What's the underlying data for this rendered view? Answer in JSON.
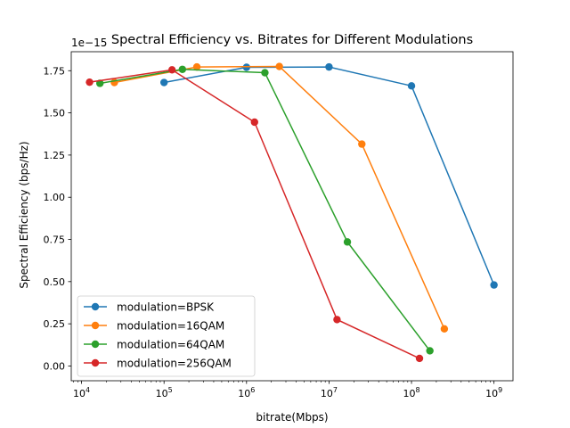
{
  "chart_data": {
    "type": "line",
    "title": "Spectral Efficiency vs. Bitrates for Different Modulations",
    "xlabel": "bitrate(Mbps)",
    "ylabel": "Spectral Efficiency (bps/Hz)",
    "y_offset_text": "1e−15",
    "x_scale": "log",
    "xlim": [
      7500,
      1700000000
    ],
    "ylim": [
      -0.0875,
      1.8625
    ],
    "x_ticks": [
      10000,
      100000,
      1000000,
      10000000,
      100000000,
      1000000000
    ],
    "x_tick_labels": [
      {
        "base": "10",
        "exp": "4"
      },
      {
        "base": "10",
        "exp": "5"
      },
      {
        "base": "10",
        "exp": "6"
      },
      {
        "base": "10",
        "exp": "7"
      },
      {
        "base": "10",
        "exp": "8"
      },
      {
        "base": "10",
        "exp": "9"
      }
    ],
    "y_ticks": [
      0.0,
      0.25,
      0.5,
      0.75,
      1.0,
      1.25,
      1.5,
      1.75
    ],
    "y_tick_labels": [
      "0.00",
      "0.25",
      "0.50",
      "0.75",
      "1.00",
      "1.25",
      "1.50",
      "1.75"
    ],
    "grid": false,
    "legend_position": "lower-left",
    "series": [
      {
        "name": "modulation=BPSK",
        "color": "#1f77b4",
        "x": [
          100000,
          1000000,
          10000000,
          100000000,
          1000000000
        ],
        "y": [
          1.68,
          1.77,
          1.772,
          1.66,
          0.48
        ]
      },
      {
        "name": "modulation=16QAM",
        "color": "#ff7f0e",
        "x": [
          25000,
          250000,
          2500000,
          25000000,
          250000000
        ],
        "y": [
          1.68,
          1.772,
          1.775,
          1.315,
          0.22
        ]
      },
      {
        "name": "modulation=64QAM",
        "color": "#2ca02c",
        "x": [
          16700,
          167000,
          1670000,
          16700000,
          167000000
        ],
        "y": [
          1.675,
          1.758,
          1.738,
          0.735,
          0.09
        ]
      },
      {
        "name": "modulation=256QAM",
        "color": "#d62728",
        "x": [
          12500,
          125000,
          1250000,
          12500000,
          125000000
        ],
        "y": [
          1.682,
          1.755,
          1.445,
          0.275,
          0.045
        ]
      }
    ]
  }
}
